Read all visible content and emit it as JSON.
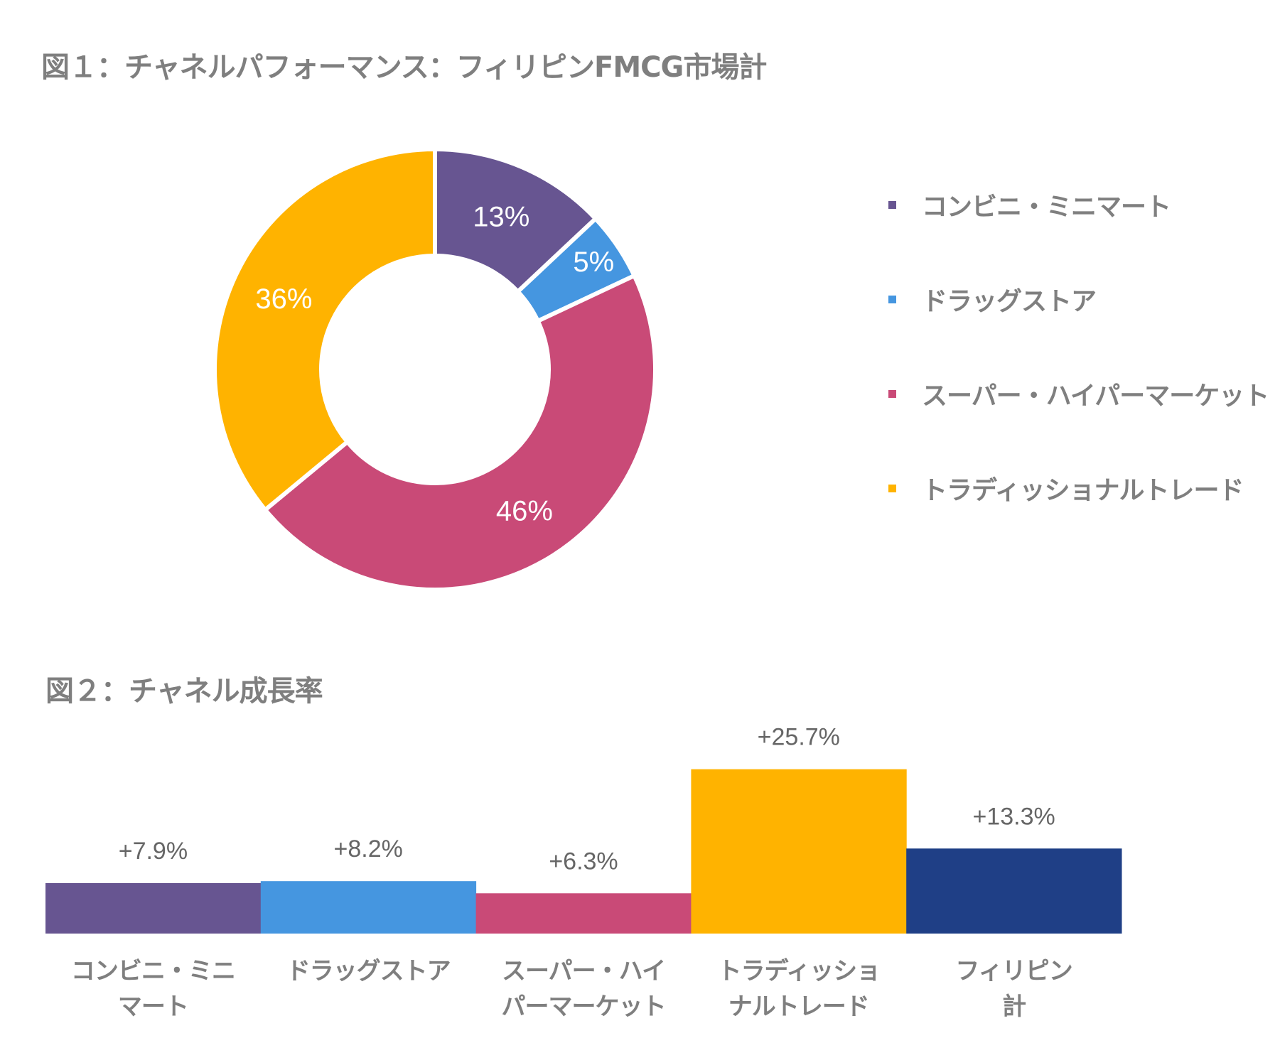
{
  "chart_data": [
    {
      "type": "pie",
      "variant": "donut",
      "title": "図１：チャネルパフォーマンス：フィリピンFMCG市場計",
      "categories": [
        "コンビニ・ミニマート",
        "ドラッグストア",
        "スーパー・ハイパーマーケット",
        "トラディッショナルトレード"
      ],
      "values": [
        13,
        5,
        46,
        36
      ],
      "labels": [
        "13%",
        "5%",
        "46%",
        "36%"
      ],
      "colors": [
        "#675591",
        "#4596e0",
        "#c94a77",
        "#ffb300"
      ],
      "legend": "right"
    },
    {
      "type": "bar",
      "title": "図２：チャネル成長率",
      "categories": [
        "コンビニ・ミニ\nマート",
        "ドラッグストア",
        "スーパー・ハイ\nパーマーケット",
        "トラディッショ\nナルトレード",
        "フィリピン\n計"
      ],
      "values": [
        7.9,
        8.2,
        6.3,
        25.7,
        13.3
      ],
      "labels": [
        "+7.9%",
        "+8.2%",
        "+6.3%",
        "+25.7%",
        "+13.3%"
      ],
      "colors": [
        "#675591",
        "#4596e0",
        "#c94a77",
        "#ffb300",
        "#1f3f86"
      ],
      "grid": false
    }
  ]
}
